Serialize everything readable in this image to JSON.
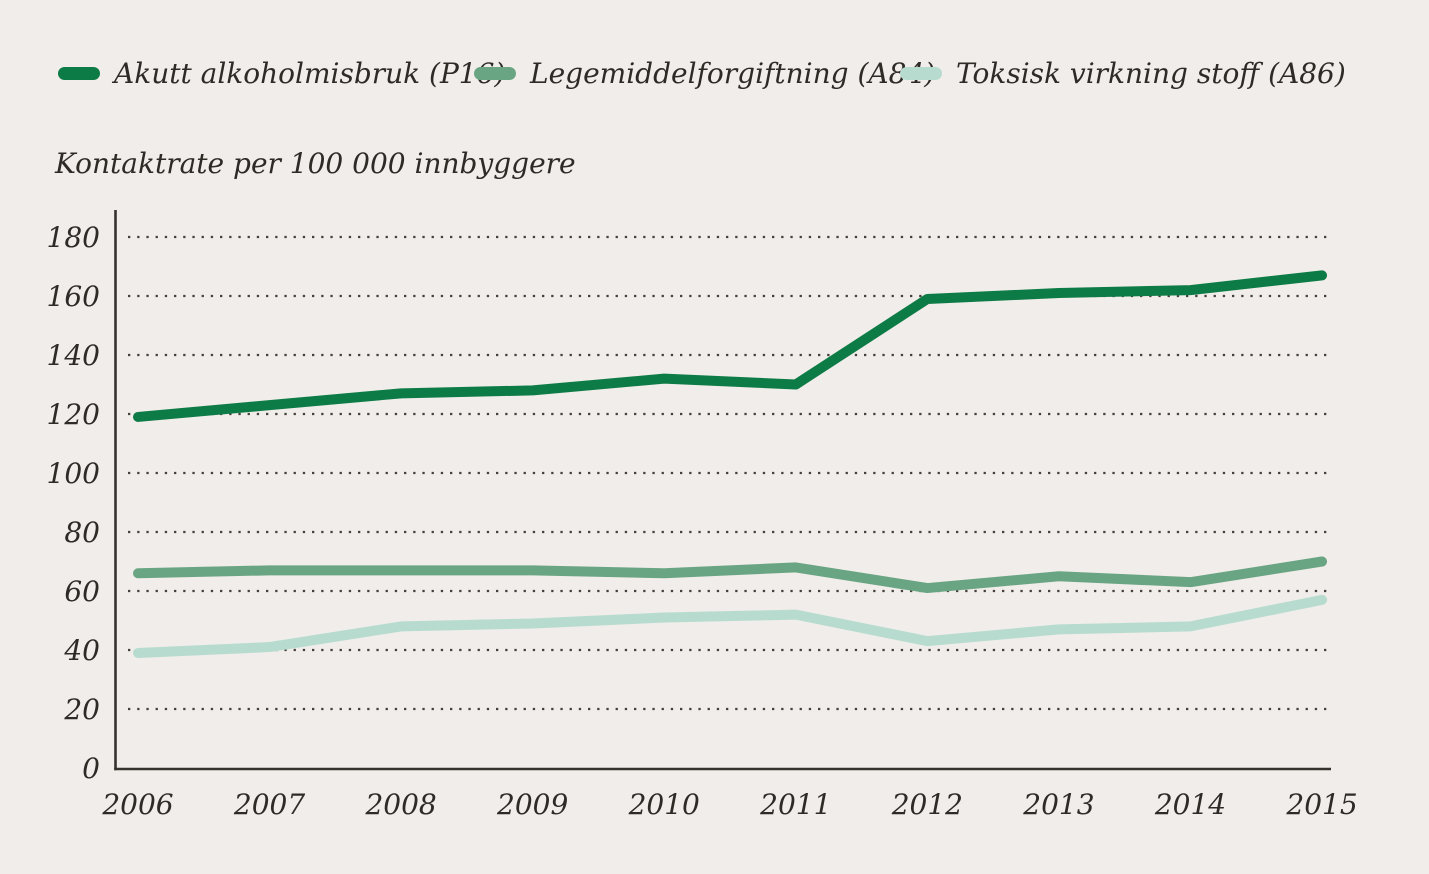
{
  "colors": {
    "background": "#f0edea",
    "text": "#2e2a26",
    "axis": "#36322d",
    "gridline": "#45403a"
  },
  "axis_title": "Kontaktrate per 100 000 innbyggere",
  "chart_data": {
    "type": "line",
    "title": "Kontaktrate per 100 000 innbyggere",
    "xlabel": "",
    "ylabel": "Kontaktrate per 100 000 innbyggere",
    "x": [
      2006,
      2007,
      2008,
      2009,
      2010,
      2011,
      2012,
      2013,
      2014,
      2015
    ],
    "series": [
      {
        "name": "Akutt alkoholmisbruk (P16)",
        "color": "#0d7b45",
        "values": [
          119,
          123,
          127,
          128,
          132,
          130,
          159,
          161,
          162,
          167
        ]
      },
      {
        "name": "Legemiddelforgiftning (A84)",
        "color": "#6aa583",
        "values": [
          66,
          67,
          67,
          67,
          66,
          68,
          61,
          65,
          63,
          70
        ]
      },
      {
        "name": "Toksisk virkning stoff (A86)",
        "color": "#b7dccf",
        "values": [
          39,
          41,
          48,
          49,
          51,
          52,
          43,
          47,
          48,
          57
        ]
      }
    ],
    "ylim": [
      0,
      180
    ],
    "ytick_step": 20,
    "grid": "dotted-horizontal",
    "legend_position": "top"
  }
}
